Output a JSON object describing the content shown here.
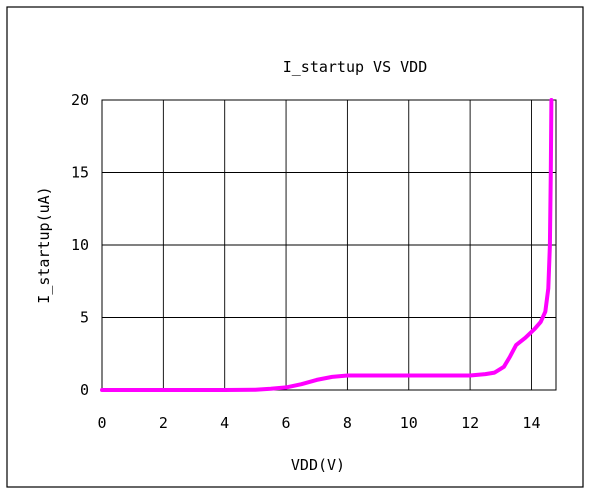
{
  "chart_data": {
    "type": "line",
    "title": "I_startup VS VDD",
    "xlabel": "VDD(V)",
    "ylabel": "I_startup(uA)",
    "xlim": [
      0,
      14.8
    ],
    "ylim": [
      0,
      20
    ],
    "xticks": [
      0,
      2,
      4,
      6,
      8,
      10,
      12,
      14
    ],
    "yticks": [
      0,
      5,
      10,
      15,
      20
    ],
    "xtick_labels": [
      "0",
      "2",
      "4",
      "6",
      "8",
      "10",
      "12",
      "14"
    ],
    "ytick_labels": [
      "0",
      "5",
      "10",
      "15",
      "20"
    ],
    "grid": true,
    "series": [
      {
        "color": "#ff00ff",
        "points": [
          [
            0,
            0
          ],
          [
            1,
            0
          ],
          [
            2,
            0
          ],
          [
            3,
            0
          ],
          [
            4,
            0
          ],
          [
            5,
            0.02
          ],
          [
            5.5,
            0.08
          ],
          [
            6,
            0.18
          ],
          [
            6.5,
            0.4
          ],
          [
            7,
            0.7
          ],
          [
            7.5,
            0.9
          ],
          [
            8,
            1.0
          ],
          [
            9,
            1.0
          ],
          [
            10,
            1.0
          ],
          [
            11,
            1.0
          ],
          [
            12,
            1.0
          ],
          [
            12.5,
            1.1
          ],
          [
            12.8,
            1.2
          ],
          [
            13.1,
            1.6
          ],
          [
            13.3,
            2.3
          ],
          [
            13.5,
            3.1
          ],
          [
            13.8,
            3.6
          ],
          [
            14.1,
            4.2
          ],
          [
            14.3,
            4.7
          ],
          [
            14.45,
            5.4
          ],
          [
            14.55,
            7.0
          ],
          [
            14.6,
            10.0
          ],
          [
            14.63,
            15.0
          ],
          [
            14.65,
            20.0
          ]
        ]
      }
    ]
  }
}
